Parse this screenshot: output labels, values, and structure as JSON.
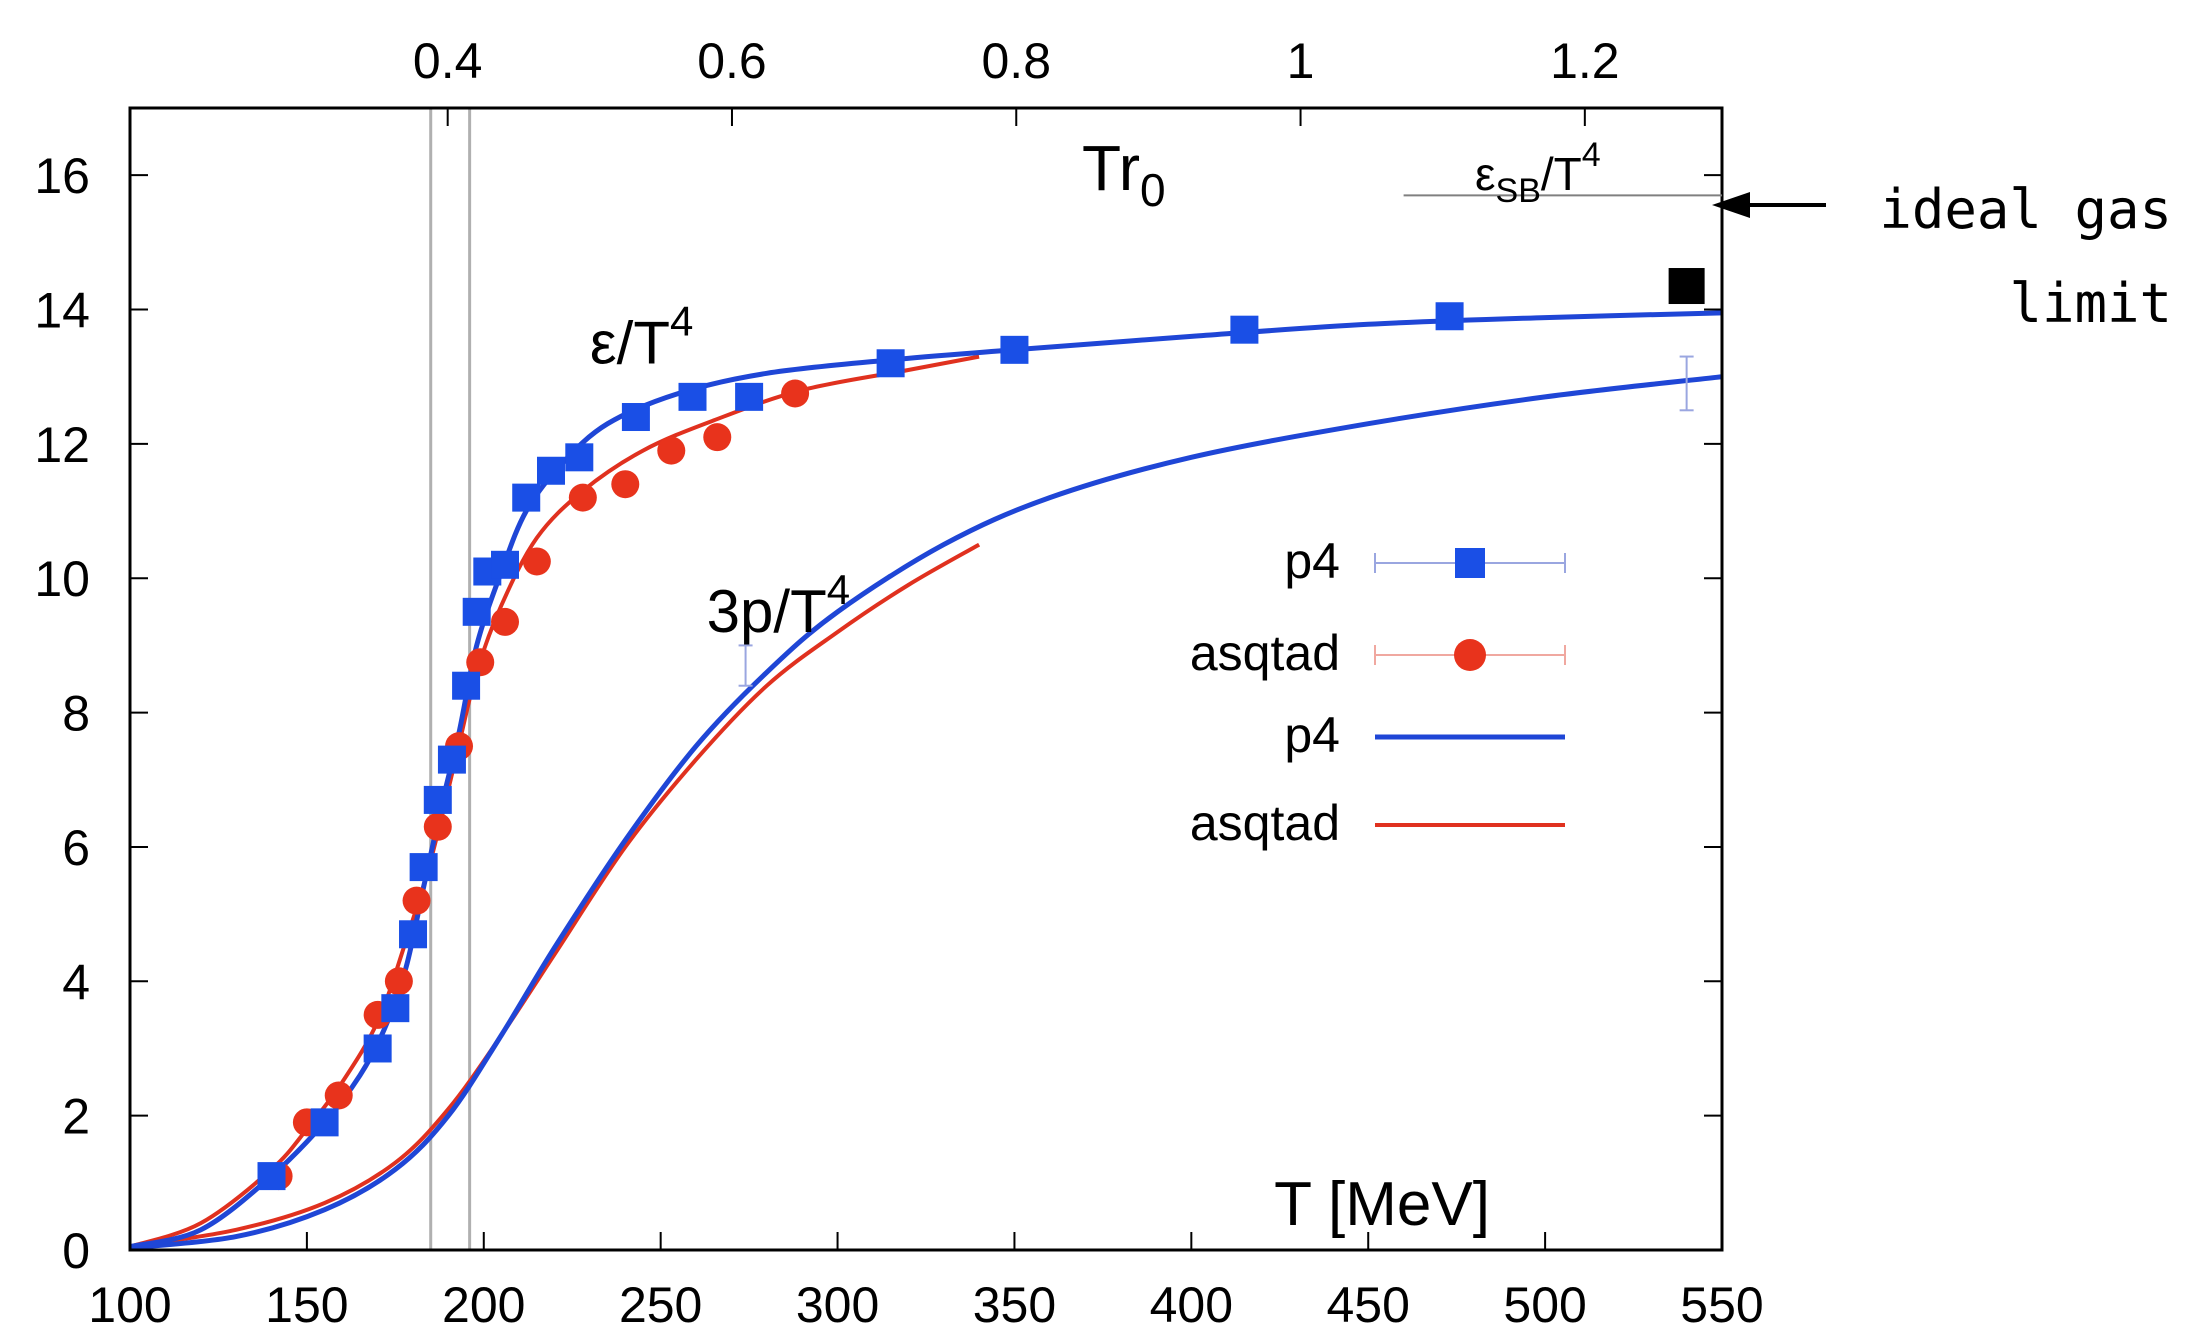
{
  "colors": {
    "p4": "#1f46d6",
    "p4_marker": "#1a4fe6",
    "asqtad": "#e0311f",
    "asqtad_marker": "#e8331c",
    "ref_line": "#b0b0b0",
    "axis": "#000000"
  },
  "chart_data": {
    "type": "line",
    "xlabel": "T [MeV]",
    "x2label": "Tr",
    "x2label_sub": "0",
    "xlim": [
      100,
      550
    ],
    "ylim": [
      0,
      17
    ],
    "x2lim": [
      0.1765,
      1.2965
    ],
    "x_ticks": [
      100,
      150,
      200,
      250,
      300,
      350,
      400,
      450,
      500,
      550
    ],
    "x2_ticks": [
      0.4,
      0.6,
      0.8,
      1,
      1.2
    ],
    "y_ticks": [
      0,
      2,
      4,
      6,
      8,
      10,
      12,
      14,
      16
    ],
    "grid": false,
    "legend_placement": "center-right",
    "vertical_lines": [
      185,
      196
    ],
    "sb_limit": {
      "y": 15.7,
      "x_range": [
        460,
        550
      ],
      "label_base": "ε",
      "label_sub": "SB",
      "label_rest": "/T",
      "label_sup": "4"
    },
    "curve_labels": {
      "energy": {
        "base": "ε/T",
        "sup": "4",
        "x": 230,
        "y": 13.2
      },
      "pressure": {
        "base": "3p/T",
        "sup": "4",
        "x": 263,
        "y": 9.2
      }
    },
    "series": [
      {
        "name": "p4",
        "kind": "points",
        "marker": "square",
        "points": [
          [
            140,
            1.1
          ],
          [
            155,
            1.9
          ],
          [
            170,
            3.0
          ],
          [
            175,
            3.6
          ],
          [
            180,
            4.7
          ],
          [
            183,
            5.7
          ],
          [
            187,
            6.7
          ],
          [
            191,
            7.3
          ],
          [
            195,
            8.4
          ],
          [
            198,
            9.5
          ],
          [
            201,
            10.1
          ],
          [
            206,
            10.2
          ],
          [
            212,
            11.2
          ],
          [
            219,
            11.6
          ],
          [
            227,
            11.8
          ],
          [
            243,
            12.4
          ],
          [
            259,
            12.7
          ],
          [
            275,
            12.7
          ],
          [
            315,
            13.2
          ],
          [
            350,
            13.4
          ],
          [
            415,
            13.7
          ],
          [
            473,
            13.9
          ]
        ]
      },
      {
        "name": "asqtad",
        "kind": "points",
        "marker": "circle",
        "points": [
          [
            142,
            1.1
          ],
          [
            150,
            1.9
          ],
          [
            159,
            2.3
          ],
          [
            170,
            3.5
          ],
          [
            176,
            4.0
          ],
          [
            181,
            5.2
          ],
          [
            187,
            6.3
          ],
          [
            193,
            7.5
          ],
          [
            199,
            8.75
          ],
          [
            206,
            9.35
          ],
          [
            215,
            10.25
          ],
          [
            228,
            11.2
          ],
          [
            240,
            11.4
          ],
          [
            253,
            11.9
          ],
          [
            266,
            12.1
          ],
          [
            288,
            12.75
          ]
        ]
      },
      {
        "name": "p4",
        "kind": "line",
        "energy": [
          [
            100,
            0.05
          ],
          [
            120,
            0.3
          ],
          [
            140,
            1.1
          ],
          [
            155,
            1.9
          ],
          [
            165,
            2.6
          ],
          [
            172,
            3.3
          ],
          [
            178,
            4.2
          ],
          [
            183,
            5.4
          ],
          [
            188,
            6.6
          ],
          [
            193,
            7.7
          ],
          [
            198,
            9.0
          ],
          [
            205,
            10.1
          ],
          [
            212,
            11.0
          ],
          [
            222,
            11.7
          ],
          [
            235,
            12.3
          ],
          [
            255,
            12.75
          ],
          [
            280,
            13.05
          ],
          [
            315,
            13.25
          ],
          [
            350,
            13.4
          ],
          [
            400,
            13.6
          ],
          [
            450,
            13.78
          ],
          [
            500,
            13.88
          ],
          [
            550,
            13.95
          ]
        ],
        "pressure": [
          [
            100,
            0.03
          ],
          [
            130,
            0.2
          ],
          [
            155,
            0.6
          ],
          [
            175,
            1.2
          ],
          [
            190,
            2.0
          ],
          [
            205,
            3.2
          ],
          [
            220,
            4.5
          ],
          [
            240,
            6.1
          ],
          [
            260,
            7.5
          ],
          [
            280,
            8.6
          ],
          [
            300,
            9.5
          ],
          [
            330,
            10.5
          ],
          [
            360,
            11.2
          ],
          [
            400,
            11.8
          ],
          [
            450,
            12.3
          ],
          [
            500,
            12.7
          ],
          [
            550,
            13.0
          ]
        ]
      },
      {
        "name": "asqtad",
        "kind": "line",
        "energy": [
          [
            100,
            0.05
          ],
          [
            120,
            0.4
          ],
          [
            140,
            1.2
          ],
          [
            150,
            1.8
          ],
          [
            160,
            2.5
          ],
          [
            170,
            3.4
          ],
          [
            178,
            4.6
          ],
          [
            185,
            5.8
          ],
          [
            192,
            7.3
          ],
          [
            198,
            8.6
          ],
          [
            205,
            9.6
          ],
          [
            215,
            10.6
          ],
          [
            228,
            11.3
          ],
          [
            245,
            11.9
          ],
          [
            265,
            12.35
          ],
          [
            290,
            12.8
          ],
          [
            320,
            13.1
          ],
          [
            340,
            13.3
          ]
        ],
        "pressure": [
          [
            100,
            0.05
          ],
          [
            130,
            0.3
          ],
          [
            155,
            0.7
          ],
          [
            175,
            1.3
          ],
          [
            190,
            2.1
          ],
          [
            205,
            3.2
          ],
          [
            220,
            4.4
          ],
          [
            240,
            6.0
          ],
          [
            260,
            7.3
          ],
          [
            280,
            8.4
          ],
          [
            300,
            9.2
          ],
          [
            320,
            9.9
          ],
          [
            340,
            10.5
          ]
        ]
      }
    ],
    "error_bars": [
      {
        "x": 274,
        "y": 8.7,
        "err": 0.3
      },
      {
        "x": 540,
        "y": 12.9,
        "err": 0.4
      }
    ],
    "black_marker": {
      "x": 540,
      "y": 14.35
    }
  },
  "annotation": {
    "line1": "ideal gas",
    "line2": "limit"
  }
}
